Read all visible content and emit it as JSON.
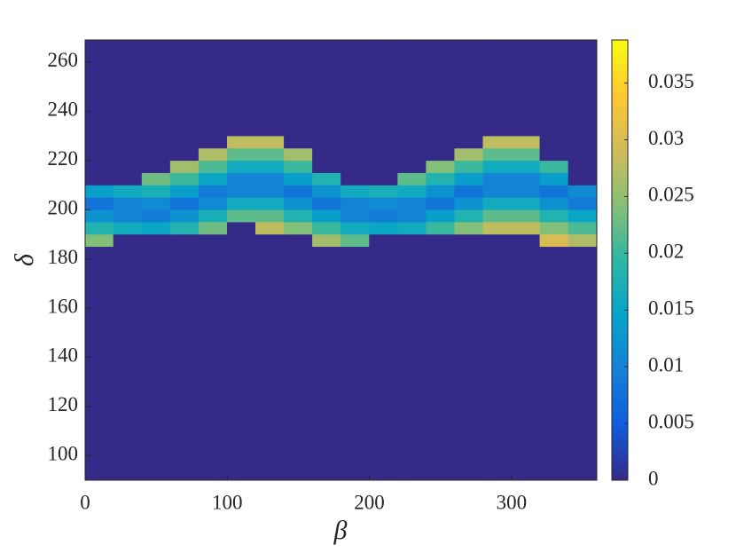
{
  "chart_data": {
    "type": "heatmap",
    "xlabel": "β",
    "ylabel": "δ",
    "x_edges": [
      0,
      20,
      40,
      60,
      80,
      100,
      120,
      140,
      160,
      180,
      200,
      220,
      240,
      260,
      280,
      300,
      320,
      340,
      360
    ],
    "y_edges": [
      90,
      180,
      185,
      190,
      195,
      200,
      205,
      210,
      215,
      220,
      225,
      230,
      235,
      269
    ],
    "z": [
      [
        0,
        0,
        0,
        0,
        0,
        0,
        0,
        0,
        0,
        0,
        0,
        0,
        0,
        0,
        0,
        0,
        0,
        0
      ],
      [
        0,
        0,
        0,
        0,
        0,
        0,
        0,
        0,
        0,
        0,
        0,
        0,
        0,
        0,
        0,
        0,
        0,
        0
      ],
      [
        0.024,
        0,
        0,
        0,
        0,
        0,
        0,
        0,
        0.026,
        0.022,
        0,
        0,
        0,
        0,
        0,
        0,
        0.03,
        0.027
      ],
      [
        0.018,
        0.016,
        0.015,
        0.018,
        0.023,
        0,
        0.028,
        0.024,
        0.02,
        0.016,
        0.015,
        0.016,
        0.02,
        0.024,
        0.028,
        0.028,
        0.024,
        0.021
      ],
      [
        0.012,
        0.01,
        0.009,
        0.012,
        0.017,
        0.022,
        0.022,
        0.018,
        0.014,
        0.01,
        0.009,
        0.01,
        0.014,
        0.018,
        0.022,
        0.022,
        0.018,
        0.015
      ],
      [
        0.008,
        0.01,
        0.011,
        0.008,
        0.011,
        0.016,
        0.016,
        0.012,
        0.008,
        0.01,
        0.011,
        0.01,
        0.008,
        0.012,
        0.016,
        0.016,
        0.012,
        0.009
      ],
      [
        0.014,
        0.016,
        0.017,
        0.014,
        0.009,
        0.01,
        0.01,
        0.008,
        0.012,
        0.016,
        0.017,
        0.016,
        0.012,
        0.008,
        0.01,
        0.01,
        0.008,
        0.011
      ],
      [
        0,
        0,
        0.023,
        0.02,
        0.015,
        0.01,
        0.01,
        0.014,
        0.018,
        0,
        0,
        0.022,
        0.018,
        0.014,
        0.01,
        0.01,
        0.014,
        0
      ],
      [
        0,
        0,
        0,
        0.026,
        0.021,
        0.016,
        0.016,
        0.02,
        0,
        0,
        0,
        0,
        0.024,
        0.02,
        0.016,
        0.016,
        0.02,
        0
      ],
      [
        0,
        0,
        0,
        0,
        0.027,
        0.022,
        0.022,
        0.026,
        0,
        0,
        0,
        0,
        0,
        0.026,
        0.022,
        0.022,
        0,
        0
      ],
      [
        0,
        0,
        0,
        0,
        0,
        0.028,
        0.028,
        0,
        0,
        0,
        0,
        0,
        0,
        0,
        0.028,
        0.028,
        0,
        0
      ],
      [
        0,
        0,
        0,
        0,
        0,
        0,
        0,
        0,
        0,
        0,
        0,
        0,
        0,
        0,
        0,
        0,
        0,
        0
      ],
      [
        0,
        0,
        0,
        0,
        0,
        0,
        0,
        0,
        0,
        0,
        0,
        0,
        0,
        0,
        0,
        0,
        0,
        0
      ]
    ],
    "xlim": [
      0,
      360
    ],
    "xticks": [
      0,
      100,
      200,
      300
    ],
    "ylim": [
      90,
      269
    ],
    "yticks": [
      100,
      120,
      140,
      160,
      180,
      200,
      220,
      240,
      260
    ],
    "clim": [
      0,
      0.0388
    ],
    "cticks": [
      0,
      0.005,
      0.01,
      0.015,
      0.02,
      0.025,
      0.03,
      0.035
    ],
    "colormap": [
      "#352a87",
      "#0f5cdd",
      "#1481d6",
      "#06a4ca",
      "#2eb7a4",
      "#87bf77",
      "#d1bb59",
      "#fec832",
      "#f9fb0e"
    ],
    "colorbar": true
  }
}
